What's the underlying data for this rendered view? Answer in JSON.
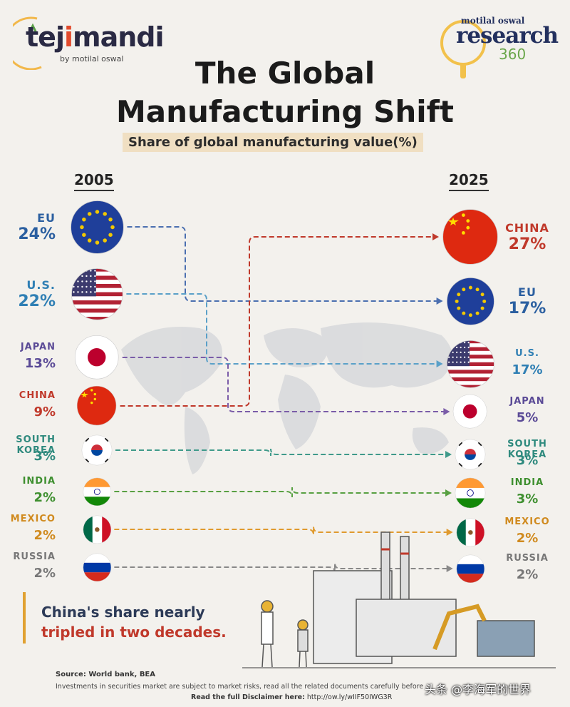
{
  "brand": {
    "name_a": "tej",
    "name_b": "i",
    "name_c": "m",
    "name_d": "andi",
    "sub": "by motilal oswal"
  },
  "research": {
    "top": "motilal oswal",
    "mid": "research",
    "num": "360"
  },
  "title": {
    "line1": "The Global",
    "line2": "Manufacturing Shift"
  },
  "subtitle": "Share of global manufacturing value(%)",
  "years": {
    "left": "2005",
    "right": "2025"
  },
  "takeaway": {
    "line1": "China's share nearly",
    "line2": "tripled in two decades."
  },
  "source": "Source: World bank, BEA",
  "disclaimer": "Investments in securities market are subject to market risks, read all the related documents carefully before investing.",
  "disclaimer_link": {
    "label": "Read the full Disclaimer here:",
    "url": "http://ow.ly/wIIF50IWG3R"
  },
  "watermark": "头条 @李海军的世界",
  "chart_data": {
    "type": "slope",
    "title": "The Global Manufacturing Shift",
    "subtitle": "Share of global manufacturing value(%)",
    "unit": "%",
    "periods": [
      "2005",
      "2025"
    ],
    "series": [
      {
        "name": "EU",
        "label_2005": "EU",
        "label_2025": "EU",
        "v2005": 24,
        "v2025": 17,
        "rank2005": 1,
        "rank2025": 2,
        "color": "#4b6fb0",
        "text_color": "#2b5fa0",
        "flag": "eu"
      },
      {
        "name": "U.S.",
        "label_2005": "U.S.",
        "label_2025": "U.S.",
        "v2005": 22,
        "v2025": 17,
        "rank2005": 2,
        "rank2025": 3,
        "color": "#5aa0c8",
        "text_color": "#2f7fb4",
        "flag": "us"
      },
      {
        "name": "JAPAN",
        "label_2005": "JAPAN",
        "label_2025": "JAPAN",
        "v2005": 13,
        "v2025": 5,
        "rank2005": 3,
        "rank2025": 4,
        "color": "#7a5ca8",
        "text_color": "#5a4a96",
        "flag": "jp"
      },
      {
        "name": "CHINA",
        "label_2005": "CHINA",
        "label_2025": "CHINA",
        "v2005": 9,
        "v2025": 27,
        "rank2005": 4,
        "rank2025": 1,
        "color": "#c0392b",
        "text_color": "#c0392b",
        "flag": "cn"
      },
      {
        "name": "SOUTH KOREA",
        "label_2005": "SOUTH KOREA",
        "label_2025": "SOUTH KOREA",
        "v2005": 3,
        "v2025": 3,
        "rank2005": 5,
        "rank2025": 5,
        "color": "#3f9a8a",
        "text_color": "#2f8a7e",
        "flag": "kr"
      },
      {
        "name": "INDIA",
        "label_2005": "INDIA",
        "label_2025": "INDIA",
        "v2005": 2,
        "v2025": 3,
        "rank2005": 6,
        "rank2025": 6,
        "color": "#58a042",
        "text_color": "#3e8f2f",
        "flag": "in"
      },
      {
        "name": "MEXICO",
        "label_2005": "MEXICO",
        "label_2025": "MEXICO",
        "v2005": 2,
        "v2025": 2,
        "rank2005": 7,
        "rank2025": 7,
        "color": "#e09a2e",
        "text_color": "#d08a1e",
        "flag": "mx"
      },
      {
        "name": "RUSSIA",
        "label_2005": "RUSSIA",
        "label_2025": "RUSSIA",
        "v2005": 2,
        "v2025": 2,
        "rank2005": 8,
        "rank2025": 8,
        "color": "#888888",
        "text_color": "#777777",
        "flag": "ru"
      }
    ]
  }
}
